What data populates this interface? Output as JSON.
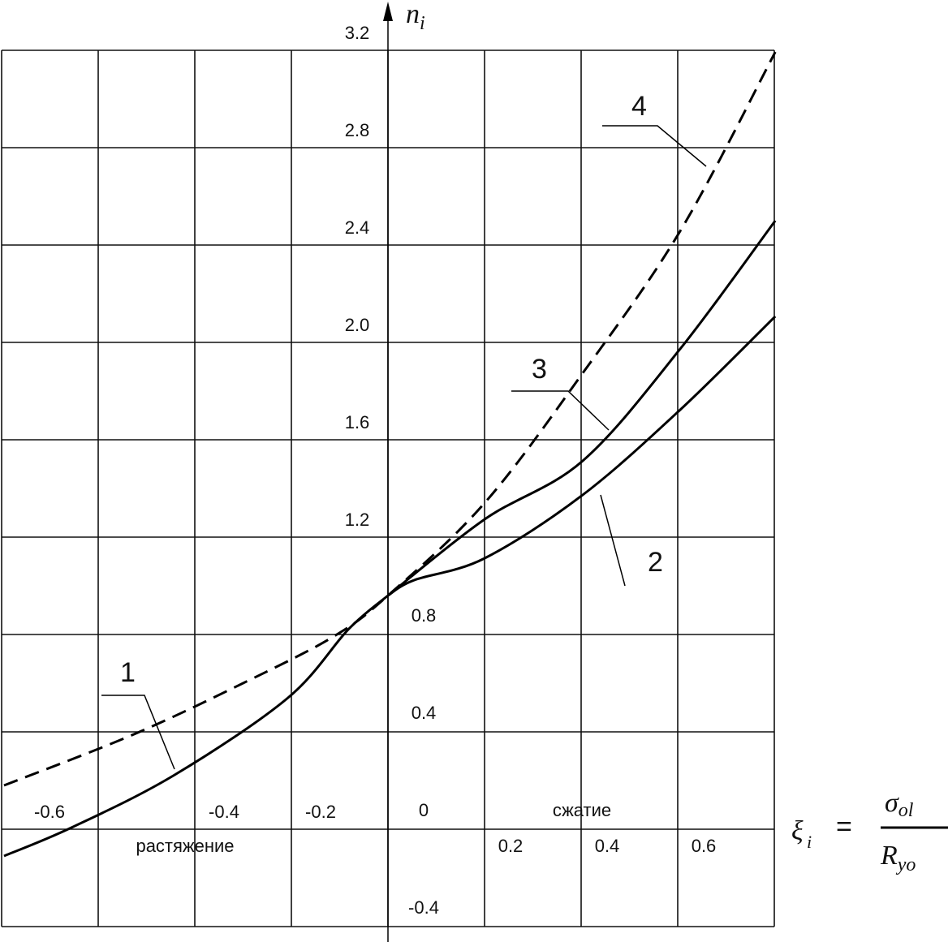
{
  "chart_data": {
    "type": "line",
    "ylabel": {
      "main": "n",
      "sub": "i"
    },
    "xlabel": {
      "symbol": "ξ",
      "sub": "i",
      "equals": "=",
      "numerator": "σ",
      "numerator_sub": "ol",
      "denominator": "R",
      "denominator_sub": "yo"
    },
    "annotations": {
      "tension": "растяжение",
      "compression": "сжатие"
    },
    "xlim": [
      -0.8,
      0.8
    ],
    "ylim": [
      -0.4,
      3.2
    ],
    "xticks": [
      -0.6,
      -0.4,
      -0.2,
      0.2,
      0.4,
      0.6
    ],
    "grid_x": [
      -0.8,
      -0.6,
      -0.4,
      -0.2,
      0,
      0.2,
      0.4,
      0.6,
      0.8
    ],
    "yticks": [
      3.2,
      2.8,
      2.4,
      {
        "value": 2,
        "label": "2.0"
      },
      1.6,
      1.2,
      0.8,
      0.4,
      0,
      -0.4
    ],
    "grid": true,
    "series": [
      {
        "name": "1",
        "style": "solid",
        "color": "#000000",
        "x": [
          -0.795,
          -0.655,
          -0.442,
          -0.207,
          -0.081,
          0
        ],
        "values": [
          -0.11,
          0.007,
          0.223,
          0.54,
          0.823,
          0.96
        ]
      },
      {
        "name": "2",
        "style": "solid",
        "color": "#000000",
        "x": [
          0,
          0.054,
          0.2,
          0.403,
          0.605,
          0.802
        ],
        "values": [
          0.96,
          1.023,
          1.113,
          1.373,
          1.723,
          2.107
        ]
      },
      {
        "name": "3",
        "style": "solid",
        "color": "#000000",
        "x": [
          0,
          0.2,
          0.403,
          0.605,
          0.802
        ],
        "values": [
          0.96,
          1.273,
          1.513,
          1.973,
          2.5
        ]
      },
      {
        "name": "4",
        "style": "dashed",
        "color": "#000000",
        "x": [
          -0.795,
          -0.526,
          -0.3,
          -0.114,
          0,
          0.2,
          0.403,
          0.605,
          0.802
        ],
        "values": [
          0.18,
          0.39,
          0.6,
          0.79,
          0.96,
          1.34,
          1.873,
          2.457,
          3.193
        ]
      }
    ]
  }
}
